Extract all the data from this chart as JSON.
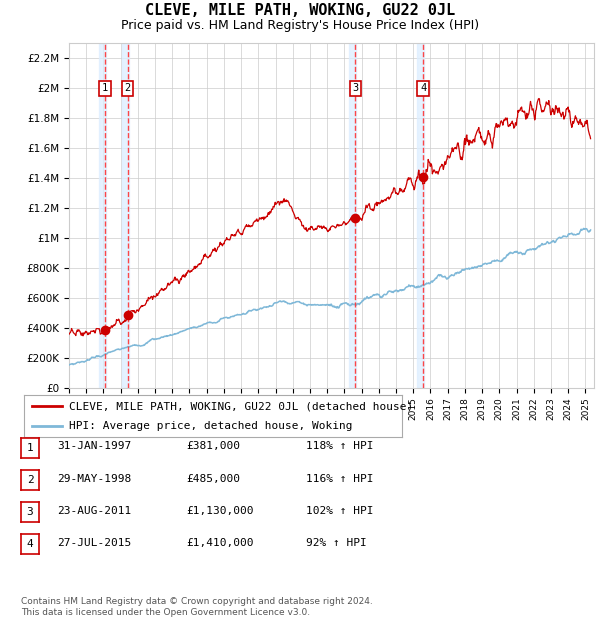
{
  "title": "CLEVE, MILE PATH, WOKING, GU22 0JL",
  "subtitle": "Price paid vs. HM Land Registry's House Price Index (HPI)",
  "ylabel_ticks": [
    "£0",
    "£200K",
    "£400K",
    "£600K",
    "£800K",
    "£1M",
    "£1.2M",
    "£1.4M",
    "£1.6M",
    "£1.8M",
    "£2M",
    "£2.2M"
  ],
  "ytick_values": [
    0,
    200000,
    400000,
    600000,
    800000,
    1000000,
    1200000,
    1400000,
    1600000,
    1800000,
    2000000,
    2200000
  ],
  "ylim": [
    0,
    2300000
  ],
  "xlim_start": 1995.0,
  "xlim_end": 2025.5,
  "sale_points": [
    {
      "label": "1",
      "year": 1997.08,
      "price": 381000
    },
    {
      "label": "2",
      "year": 1998.41,
      "price": 485000
    },
    {
      "label": "3",
      "year": 2011.64,
      "price": 1130000
    },
    {
      "label": "4",
      "year": 2015.57,
      "price": 1410000
    }
  ],
  "hpi_line_color": "#7fb8d8",
  "sale_line_color": "#cc0000",
  "sale_dot_color": "#cc0000",
  "vline_color": "#ff3333",
  "shade_color": "#ddeeff",
  "grid_color": "#cccccc",
  "background_color": "#ffffff",
  "legend_entries": [
    "CLEVE, MILE PATH, WOKING, GU22 0JL (detached house)",
    "HPI: Average price, detached house, Woking"
  ],
  "table_rows": [
    {
      "num": "1",
      "date": "31-JAN-1997",
      "price": "£381,000",
      "pct": "118% ↑ HPI"
    },
    {
      "num": "2",
      "date": "29-MAY-1998",
      "price": "£485,000",
      "pct": "116% ↑ HPI"
    },
    {
      "num": "3",
      "date": "23-AUG-2011",
      "price": "£1,130,000",
      "pct": "102% ↑ HPI"
    },
    {
      "num": "4",
      "date": "27-JUL-2015",
      "price": "£1,410,000",
      "pct": "92% ↑ HPI"
    }
  ],
  "footer": "Contains HM Land Registry data © Crown copyright and database right 2024.\nThis data is licensed under the Open Government Licence v3.0.",
  "title_fontsize": 11,
  "subtitle_fontsize": 9,
  "tick_fontsize": 7.5,
  "legend_fontsize": 8,
  "table_fontsize": 8,
  "footer_fontsize": 6.5
}
